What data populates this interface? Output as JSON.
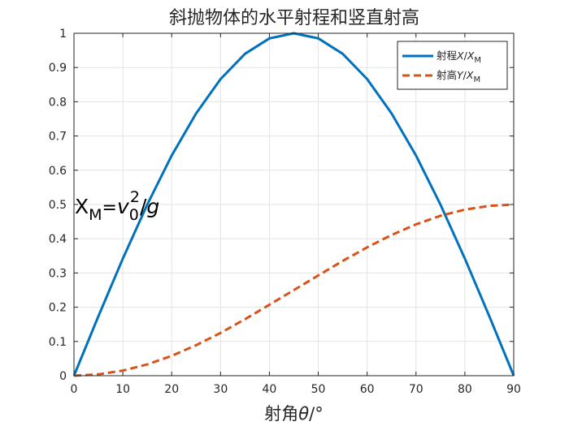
{
  "chart_data": {
    "type": "line",
    "title": "斜抛物体的水平射程和竖直射高",
    "xlabel": {
      "prefix": "射角",
      "symbol": "θ",
      "unit": "/°"
    },
    "ylabel": "",
    "xlim": [
      0,
      90
    ],
    "ylim": [
      0,
      1
    ],
    "xticks": [
      0,
      10,
      20,
      30,
      40,
      50,
      60,
      70,
      80,
      90
    ],
    "yticks": [
      0,
      0.1,
      0.2,
      0.3,
      0.4,
      0.5,
      0.6,
      0.7,
      0.8,
      0.9,
      1
    ],
    "ytick_labels": [
      "0",
      "0.1",
      "0.2",
      "0.3",
      "0.4",
      "0.5",
      "0.6",
      "0.7",
      "0.8",
      "0.9",
      "1"
    ],
    "grid": true,
    "legend_position": "top-right",
    "x": [
      0,
      5,
      10,
      15,
      20,
      25,
      30,
      35,
      40,
      45,
      50,
      55,
      60,
      65,
      70,
      75,
      80,
      85,
      90
    ],
    "series": [
      {
        "name": "射程X/X_M",
        "legend": {
          "text": "射程",
          "var": "X",
          "sep": "/",
          "ratio": "X",
          "sub": "M"
        },
        "style": "solid",
        "color": "#0072BD",
        "values": [
          0,
          0.174,
          0.342,
          0.5,
          0.643,
          0.766,
          0.866,
          0.94,
          0.985,
          1,
          0.985,
          0.94,
          0.866,
          0.766,
          0.643,
          0.5,
          0.342,
          0.174,
          0
        ]
      },
      {
        "name": "射高Y/X_M",
        "legend": {
          "text": "射高",
          "var": "Y",
          "sep": "/",
          "ratio": "X",
          "sub": "M"
        },
        "style": "dashed",
        "color": "#D95319",
        "values": [
          0,
          0.004,
          0.015,
          0.033,
          0.058,
          0.089,
          0.125,
          0.165,
          0.207,
          0.25,
          0.293,
          0.335,
          0.375,
          0.411,
          0.442,
          0.467,
          0.485,
          0.496,
          0.5
        ]
      }
    ],
    "annotation": {
      "var": "X",
      "sub": "M",
      "eq": "=",
      "v": "v",
      "v_sub": "0",
      "v_sup": "2",
      "slash": "/",
      "g": "g",
      "at_y": 0.5
    }
  }
}
